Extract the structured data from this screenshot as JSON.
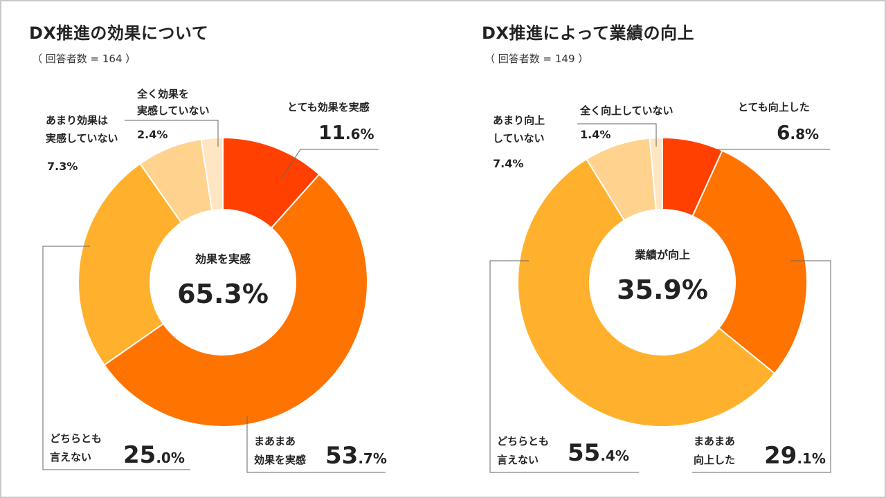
{
  "colors": {
    "very": "#ff4000",
    "somewhat": "#ff7300",
    "neither": "#ffb12e",
    "not_really": "#ffd28e",
    "not_at_all": "#ffe6c2",
    "frame": "#c8c8c8"
  },
  "chart_data": [
    {
      "type": "pie",
      "donut": true,
      "title": "DX推進の効果について",
      "respondents": "（ 回答者数 = 164 ）",
      "center_label": "効果を実感",
      "center_value": "65.3%",
      "slices": [
        {
          "key": "very",
          "label_lines": [
            "とても効果を実感"
          ],
          "value": 11.6,
          "int": "11",
          "dec": ".6%"
        },
        {
          "key": "somewhat",
          "label_lines": [
            "まあまあ",
            "効果を実感"
          ],
          "value": 53.7,
          "int": "53",
          "dec": ".7%"
        },
        {
          "key": "neither",
          "label_lines": [
            "どちらとも",
            "言えない"
          ],
          "value": 25.0,
          "int": "25",
          "dec": ".0%"
        },
        {
          "key": "not_really",
          "label_lines": [
            "あまり効果は",
            "実感していない"
          ],
          "value": 7.3,
          "text": "7.3%"
        },
        {
          "key": "not_at_all",
          "label_lines": [
            "全く効果を",
            "実感していない"
          ],
          "value": 2.4,
          "text": "2.4%"
        }
      ]
    },
    {
      "type": "pie",
      "donut": true,
      "title": "DX推進によって業績の向上",
      "respondents": "（ 回答者数 = 149 ）",
      "center_label": "業績が向上",
      "center_value": "35.9%",
      "slices": [
        {
          "key": "very",
          "label_lines": [
            "とても向上した"
          ],
          "value": 6.8,
          "int": "6",
          "dec": ".8%"
        },
        {
          "key": "somewhat",
          "label_lines": [
            "まあまあ",
            "向上した"
          ],
          "value": 29.1,
          "int": "29",
          "dec": ".1%"
        },
        {
          "key": "neither",
          "label_lines": [
            "どちらとも",
            "言えない"
          ],
          "value": 55.4,
          "int": "55",
          "dec": ".4%"
        },
        {
          "key": "not_really",
          "label_lines": [
            "あまり向上",
            "していない"
          ],
          "value": 7.4,
          "text": "7.4%"
        },
        {
          "key": "not_at_all",
          "label_lines": [
            "全く向上していない"
          ],
          "value": 1.4,
          "text": "1.4%"
        }
      ]
    }
  ]
}
